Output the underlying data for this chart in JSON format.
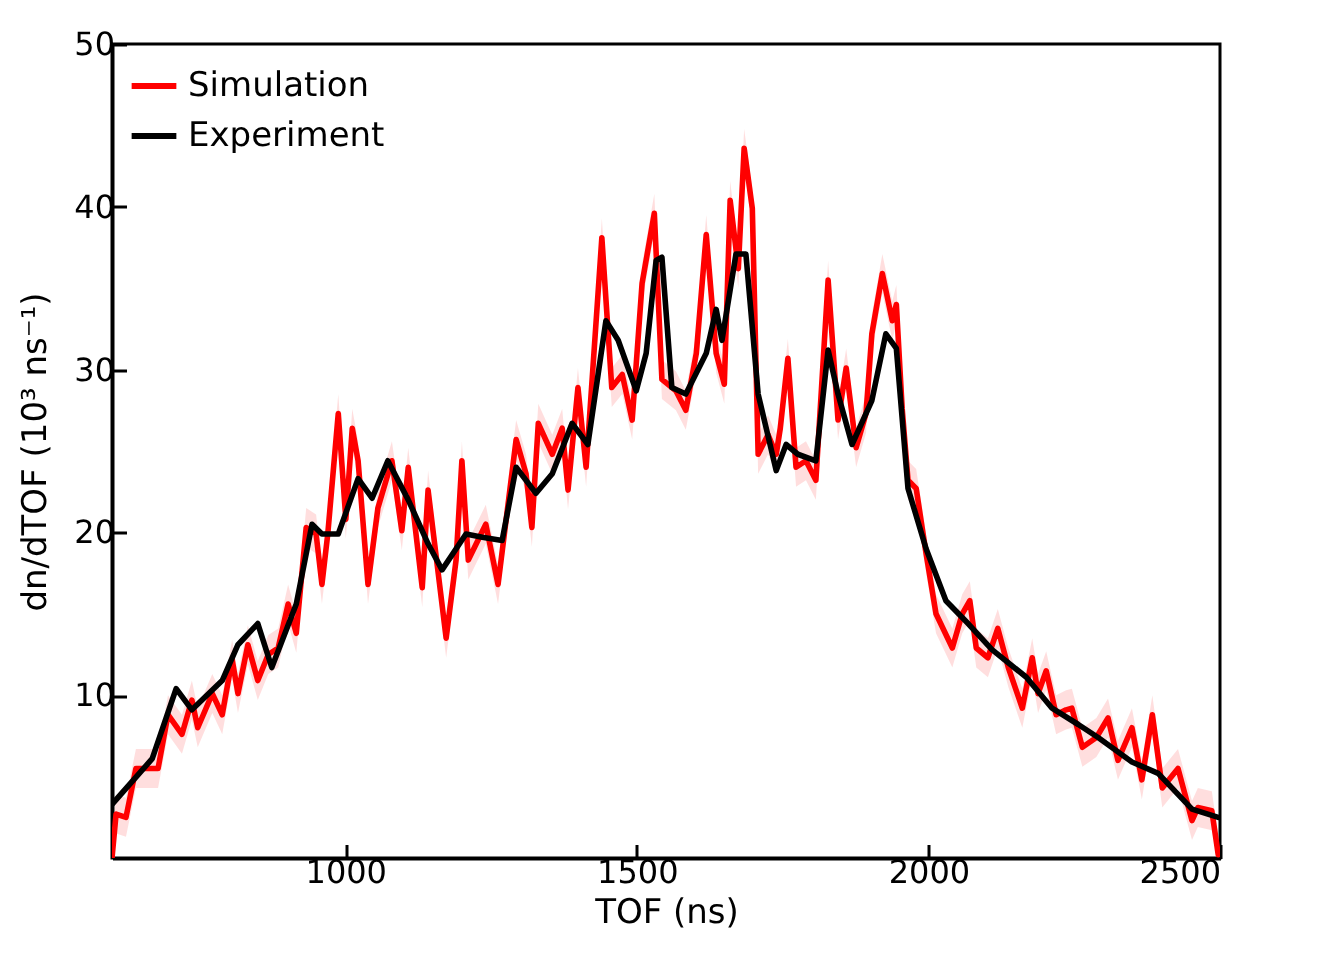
{
  "chart_data": {
    "type": "line",
    "xlabel": "TOF (ns)",
    "ylabel": "dn/dTOF (10³ ns⁻¹)",
    "xlim": [
      600,
      2500
    ],
    "xticks": [
      1000,
      1500,
      2000,
      2500
    ],
    "ylim": [
      0,
      50
    ],
    "yticks": [
      10,
      20,
      30,
      40,
      50
    ],
    "legend": "top left",
    "line_style": "solid",
    "series": [
      {
        "name": "Simulation",
        "color": "#ff0000",
        "x": [
          600,
          607,
          624,
          641,
          679,
          696,
          720,
          737,
          747,
          772,
          789,
          806,
          816,
          833,
          850,
          868,
          885,
          902,
          916,
          933,
          950,
          960,
          970,
          988,
          1001,
          1012,
          1022,
          1039,
          1056,
          1080,
          1097,
          1108,
          1132,
          1142,
          1173,
          1190,
          1200,
          1211,
          1241,
          1262,
          1293,
          1310,
          1320,
          1331,
          1355,
          1372,
          1382,
          1399,
          1413,
          1440,
          1457,
          1475,
          1492,
          1509,
          1530,
          1543,
          1567,
          1584,
          1602,
          1619,
          1636,
          1650,
          1660,
          1674,
          1684,
          1698,
          1708,
          1725,
          1739,
          1746,
          1759,
          1773,
          1790,
          1807,
          1828,
          1845,
          1859,
          1876,
          1893,
          1903,
          1921,
          1938,
          1945,
          1955,
          1965,
          1979,
          1996,
          2013,
          2041,
          2058,
          2071,
          2082,
          2102,
          2119,
          2137,
          2161,
          2178,
          2188,
          2202,
          2219,
          2236,
          2246,
          2264,
          2288,
          2308,
          2325,
          2349,
          2366,
          2384,
          2401,
          2428,
          2452,
          2462,
          2486,
          2497
        ],
        "values": [
          0,
          2.7,
          2.5,
          5.5,
          5.5,
          8.8,
          7.6,
          9.7,
          8.0,
          10.1,
          8.8,
          12.2,
          10.1,
          13.1,
          10.9,
          12.5,
          12.9,
          15.6,
          13.8,
          20.3,
          19.9,
          16.8,
          19.9,
          27.3,
          20.8,
          26.4,
          24.4,
          16.8,
          21.5,
          24.4,
          20.1,
          24.0,
          16.6,
          22.6,
          13.5,
          18.3,
          24.4,
          18.3,
          20.5,
          16.8,
          25.7,
          23.6,
          20.3,
          26.7,
          24.8,
          26.4,
          22.6,
          28.9,
          24.0,
          38.1,
          28.9,
          29.7,
          26.9,
          35.3,
          39.6,
          29.4,
          28.7,
          27.5,
          31.0,
          38.3,
          31.0,
          29.1,
          40.4,
          36.2,
          43.6,
          39.9,
          24.8,
          26.0,
          24.8,
          26.4,
          30.7,
          24.0,
          24.4,
          23.2,
          35.5,
          26.9,
          30.1,
          25.2,
          27.3,
          32.2,
          35.9,
          33.0,
          34.0,
          27.6,
          23.2,
          22.7,
          18.7,
          15.0,
          12.9,
          15.0,
          15.8,
          12.9,
          12.3,
          14.1,
          11.7,
          9.2,
          12.3,
          10.1,
          11.5,
          8.8,
          9.1,
          9.2,
          6.8,
          7.4,
          8.6,
          6.0,
          8.0,
          4.8,
          8.8,
          4.3,
          5.5,
          2.3,
          3.1,
          2.9,
          0.2
        ],
        "lower": [
          0,
          1.5,
          1.3,
          4.3,
          4.3,
          7.6,
          6.4,
          8.5,
          6.8,
          8.9,
          7.6,
          11.0,
          8.9,
          11.9,
          9.7,
          11.3,
          11.7,
          14.4,
          12.6,
          19.1,
          18.7,
          15.6,
          18.7,
          26.1,
          19.6,
          25.2,
          23.2,
          15.6,
          20.3,
          23.2,
          18.9,
          22.8,
          15.4,
          21.4,
          12.3,
          17.1,
          23.2,
          17.1,
          19.3,
          15.6,
          24.5,
          22.4,
          19.1,
          25.5,
          23.6,
          25.2,
          21.4,
          27.7,
          22.8,
          36.9,
          27.7,
          28.5,
          25.7,
          34.1,
          38.4,
          28.2,
          27.5,
          26.3,
          29.8,
          37.1,
          29.8,
          27.9,
          39.2,
          35.0,
          42.4,
          38.7,
          23.6,
          24.8,
          23.6,
          25.2,
          29.5,
          22.8,
          23.2,
          22.0,
          34.3,
          25.7,
          28.9,
          24.0,
          26.1,
          31.0,
          34.7,
          31.8,
          32.8,
          26.4,
          22.0,
          21.5,
          17.5,
          13.8,
          11.7,
          13.8,
          14.6,
          11.7,
          11.1,
          12.9,
          10.5,
          8.0,
          11.1,
          8.9,
          10.3,
          7.6,
          7.9,
          8.0,
          5.6,
          6.2,
          7.4,
          4.8,
          6.8,
          3.6,
          7.6,
          3.1,
          4.3,
          1.1,
          1.9,
          1.7,
          0
        ],
        "upper": [
          1.2,
          3.9,
          3.7,
          6.7,
          6.7,
          10.0,
          8.8,
          10.9,
          9.2,
          11.3,
          10.0,
          13.4,
          11.3,
          14.3,
          12.1,
          13.7,
          14.1,
          16.8,
          15.0,
          21.5,
          21.1,
          18.0,
          21.1,
          28.5,
          22.0,
          27.6,
          25.6,
          18.0,
          22.7,
          25.6,
          21.3,
          25.2,
          17.8,
          23.8,
          14.7,
          19.5,
          25.6,
          19.5,
          21.7,
          18.0,
          26.9,
          24.8,
          21.5,
          27.9,
          26.0,
          27.6,
          23.8,
          30.1,
          25.2,
          39.3,
          30.1,
          30.9,
          28.1,
          36.5,
          40.8,
          30.6,
          29.9,
          28.7,
          32.2,
          39.5,
          32.2,
          30.3,
          41.6,
          37.4,
          44.8,
          41.1,
          26.0,
          27.2,
          26.0,
          27.6,
          31.9,
          25.2,
          25.6,
          24.4,
          36.7,
          28.1,
          31.3,
          26.4,
          28.5,
          33.4,
          37.1,
          34.2,
          35.2,
          28.8,
          24.4,
          23.9,
          19.9,
          16.2,
          14.1,
          16.2,
          17.0,
          14.1,
          13.5,
          15.3,
          12.9,
          10.4,
          13.5,
          11.3,
          12.7,
          10.0,
          10.3,
          10.4,
          8.0,
          8.6,
          9.8,
          7.2,
          9.2,
          6.0,
          10.0,
          5.5,
          6.7,
          3.5,
          4.3,
          4.1,
          1.4
        ]
      },
      {
        "name": "Experiment",
        "color": "#000000",
        "x": [
          600,
          669,
          710,
          737,
          789,
          816,
          850,
          874,
          916,
          943,
          960,
          988,
          1022,
          1046,
          1073,
          1108,
          1142,
          1166,
          1207,
          1235,
          1269,
          1293,
          1327,
          1355,
          1389,
          1416,
          1447,
          1468,
          1499,
          1516,
          1533,
          1543,
          1560,
          1584,
          1619,
          1636,
          1646,
          1670,
          1687,
          1708,
          1739,
          1756,
          1776,
          1807,
          1828,
          1845,
          1869,
          1903,
          1927,
          1945,
          1965,
          1996,
          2030,
          2068,
          2109,
          2168,
          2212,
          2257,
          2291,
          2349,
          2394,
          2452,
          2497
        ],
        "values": [
          3.3,
          6.1,
          10.4,
          9.1,
          10.9,
          13.1,
          14.4,
          11.7,
          15.6,
          20.5,
          19.9,
          19.9,
          23.3,
          22.1,
          24.4,
          22.0,
          19.3,
          17.7,
          19.9,
          19.7,
          19.5,
          24.0,
          22.4,
          23.6,
          26.7,
          25.4,
          33.0,
          31.8,
          28.7,
          31.0,
          36.7,
          36.9,
          28.9,
          28.5,
          31.0,
          33.7,
          31.8,
          37.1,
          37.1,
          28.5,
          23.8,
          25.4,
          24.8,
          24.4,
          31.2,
          28.5,
          25.4,
          28.1,
          32.2,
          31.3,
          22.7,
          19.0,
          15.8,
          14.4,
          12.8,
          11.1,
          9.2,
          8.2,
          7.4,
          5.9,
          5.2,
          3.0,
          2.5
        ]
      }
    ]
  }
}
